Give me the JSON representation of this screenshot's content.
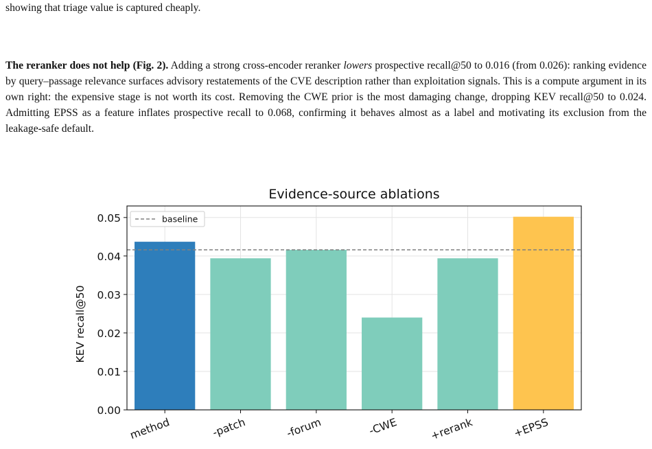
{
  "paragraph1": {
    "text": "showing that triage value is captured cheaply."
  },
  "paragraph2": {
    "lead": "The reranker does not help (Fig. 2).",
    "seg1": " Adding a strong cross-encoder reranker ",
    "emph": "lowers",
    "seg2": " prospective recall@50 to 0.016 (from 0.026): ranking evidence by query–passage relevance surfaces advisory restatements of the CVE description rather than exploitation signals. This is a compute argument in its own right: the expensive stage is not worth its cost. Removing the CWE prior is the most damaging change, dropping KEV recall@50 to 0.024. Admitting EPSS as a feature inflates prospective recall to 0.068, confirming it behaves almost as a label and motivating its exclusion from the leakage-safe default."
  },
  "chart_data": {
    "type": "bar",
    "title": "Evidence-source ablations",
    "xlabel": "",
    "ylabel": "KEV recall@50",
    "categories": [
      "method",
      "-patch",
      "-forum",
      "-CWE",
      "+rerank",
      "+EPSS"
    ],
    "values": [
      0.0437,
      0.0394,
      0.0416,
      0.024,
      0.0394,
      0.0502
    ],
    "bar_colors": [
      "#2e7ebb",
      "#7fcdbb",
      "#7fcdbb",
      "#7fcdbb",
      "#7fcdbb",
      "#fec44f"
    ],
    "ylim": [
      0,
      0.053
    ],
    "yticks": [
      0.0,
      0.01,
      0.02,
      0.03,
      0.04,
      0.05
    ],
    "ytick_labels": [
      "0.00",
      "0.01",
      "0.02",
      "0.03",
      "0.04",
      "0.05"
    ],
    "baseline": {
      "label": "baseline",
      "value": 0.0416,
      "color": "#808080"
    },
    "grid": true,
    "legend_position": "upper-left"
  }
}
